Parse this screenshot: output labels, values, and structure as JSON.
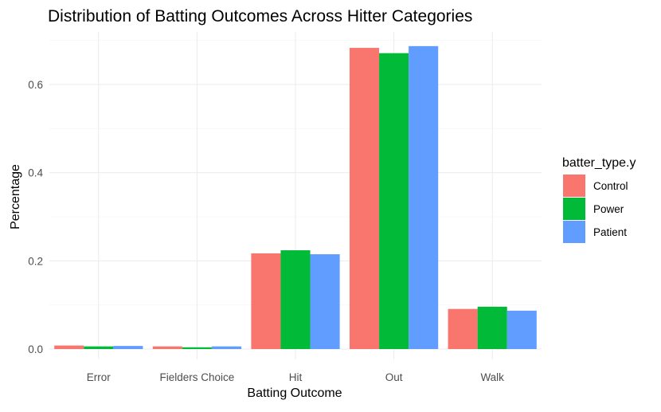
{
  "chart_data": {
    "type": "bar",
    "title": "Distribution of Batting Outcomes Across Hitter Categories",
    "xlabel": "Batting Outcome",
    "ylabel": "Percentage",
    "categories": [
      "Error",
      "Fielders Choice",
      "Hit",
      "Out",
      "Walk"
    ],
    "series": [
      {
        "name": "Control",
        "color": "#F8766D",
        "values": [
          0.008,
          0.006,
          0.217,
          0.683,
          0.091
        ]
      },
      {
        "name": "Power",
        "color": "#00BA38",
        "values": [
          0.006,
          0.004,
          0.224,
          0.671,
          0.096
        ]
      },
      {
        "name": "Patient",
        "color": "#619CFF",
        "values": [
          0.007,
          0.006,
          0.215,
          0.687,
          0.087
        ]
      }
    ],
    "ylim": [
      0,
      0.72
    ],
    "yticks": [
      0.0,
      0.2,
      0.4,
      0.6
    ],
    "ytick_labels": [
      "0.0",
      "0.2",
      "0.4",
      "0.6"
    ],
    "legend": {
      "title": "batter_type.y",
      "position": "right"
    },
    "grid": true,
    "theme": "minimal"
  }
}
